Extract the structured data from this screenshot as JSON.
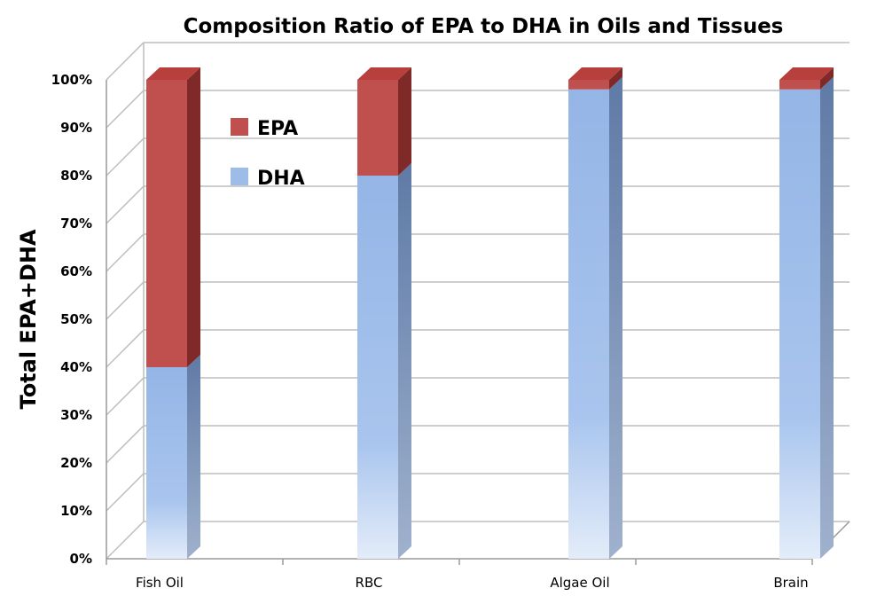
{
  "chart_data": {
    "type": "bar",
    "stacked": true,
    "three_d": true,
    "title": "Composition Ratio of EPA to DHA in Oils and Tissues",
    "xlabel": "",
    "ylabel": "Total EPA+DHA",
    "categories": [
      "Fish Oil",
      "RBC",
      "Algae Oil",
      "Brain"
    ],
    "series": [
      {
        "name": "DHA",
        "values": [
          40,
          80,
          98,
          98
        ],
        "color": "#9dbce8"
      },
      {
        "name": "EPA",
        "values": [
          60,
          20,
          2,
          2
        ],
        "color": "#c0504d"
      }
    ],
    "yticks": [
      "0%",
      "10%",
      "20%",
      "30%",
      "40%",
      "50%",
      "60%",
      "70%",
      "80%",
      "90%",
      "100%"
    ],
    "ylim": [
      0,
      100
    ],
    "grid": true,
    "legend_position": "top-left inside plot"
  }
}
